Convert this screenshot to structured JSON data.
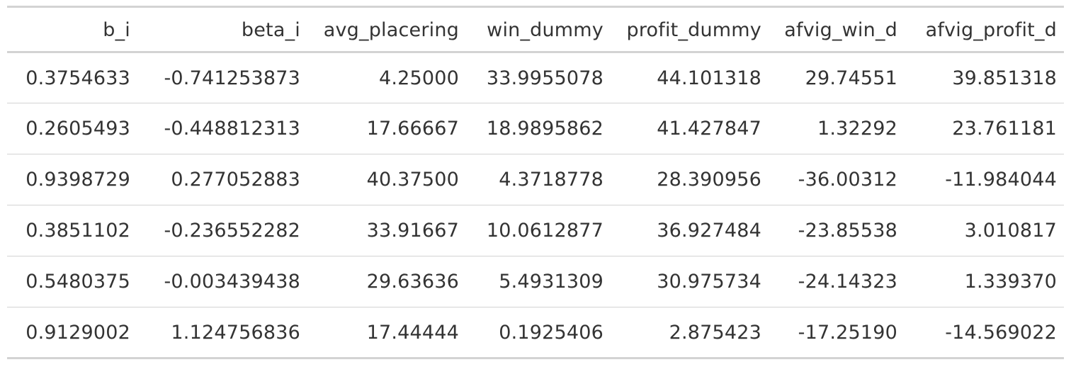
{
  "chart_data": {
    "type": "table",
    "columns": [
      "b_i",
      "beta_i",
      "avg_placering",
      "win_dummy",
      "profit_dummy",
      "afvig_win_d",
      "afvig_profit_d"
    ],
    "rows": [
      [
        "0.3754633",
        "-0.741253873",
        "4.25000",
        "33.9955078",
        "44.101318",
        "29.74551",
        "39.851318"
      ],
      [
        "0.2605493",
        "-0.448812313",
        "17.66667",
        "18.9895862",
        "41.427847",
        "1.32292",
        "23.761181"
      ],
      [
        "0.9398729",
        "0.277052883",
        "40.37500",
        "4.3718778",
        "28.390956",
        "-36.00312",
        "-11.984044"
      ],
      [
        "0.3851102",
        "-0.236552282",
        "33.91667",
        "10.0612877",
        "36.927484",
        "-23.85538",
        "3.010817"
      ],
      [
        "0.5480375",
        "-0.003439438",
        "29.63636",
        "5.4931309",
        "30.975734",
        "-24.14323",
        "1.339370"
      ],
      [
        "0.9129002",
        "1.124756836",
        "17.44444",
        "0.1925406",
        "2.875423",
        "-17.25190",
        "-14.569022"
      ]
    ]
  }
}
